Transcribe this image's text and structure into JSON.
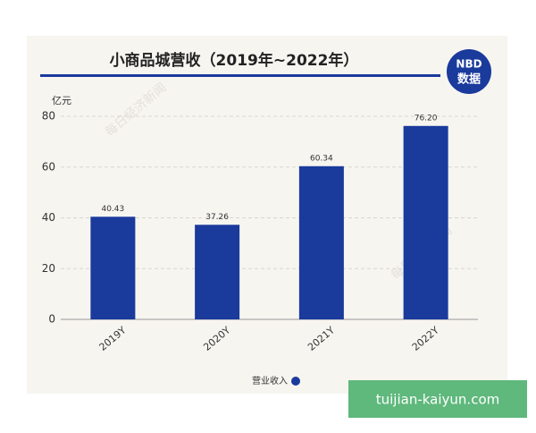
{
  "chart_data": {
    "type": "bar",
    "title": "小商品城营收（2019年~2022年）",
    "y_unit": "亿元",
    "categories": [
      "2019Y",
      "2020Y",
      "2021Y",
      "2022Y"
    ],
    "series": [
      {
        "name": "营业收入",
        "color": "#1a3a9c",
        "values": [
          40.43,
          37.26,
          60.34,
          76.2
        ],
        "value_labels": [
          "40.43",
          "37.26",
          "60.34",
          "76.20"
        ]
      }
    ],
    "ylim": [
      0,
      80
    ],
    "yticks": [
      0,
      20,
      40,
      60,
      80
    ],
    "grid": true,
    "legend": "bottom"
  },
  "logo": {
    "line1": "NBD",
    "line2": "数据"
  },
  "watermark": "每日经济新闻",
  "overlay": "tuijian-kaiyun.com"
}
